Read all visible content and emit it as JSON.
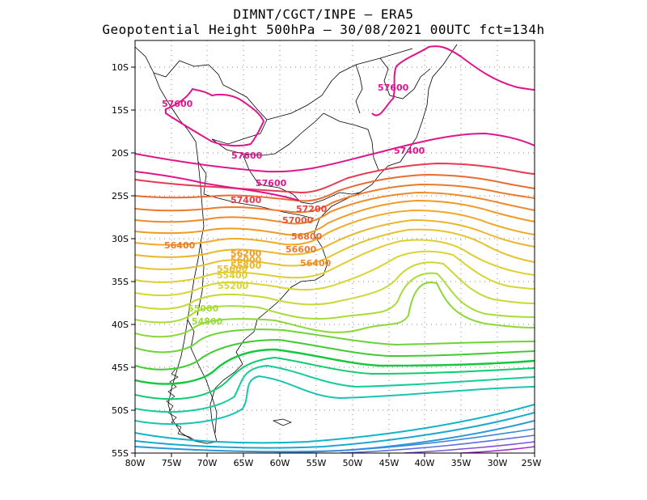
{
  "header": {
    "line1": "DIMNT/CGCT/INPE –  ERA5",
    "line2": "Geopotential Height 500hPa –  30/08/2021 00UTC fct=134h"
  },
  "axes": {
    "lon_ticks": [
      "80W",
      "75W",
      "70W",
      "65W",
      "60W",
      "55W",
      "50W",
      "45W",
      "40W",
      "35W",
      "30W",
      "25W"
    ],
    "lat_ticks": [
      "10S",
      "15S",
      "20S",
      "25S",
      "30S",
      "35S",
      "40S",
      "45S",
      "50S",
      "55S"
    ]
  },
  "contour_labels": [
    {
      "text": "57600",
      "color": "#e0148c"
    },
    {
      "text": "57600",
      "color": "#e0148c"
    },
    {
      "text": "57600",
      "color": "#e0148c"
    },
    {
      "text": "57600",
      "color": "#e0148c"
    },
    {
      "text": "57400",
      "color": "#e0148c"
    },
    {
      "text": "57400",
      "color": "#e83a50"
    },
    {
      "text": "57200",
      "color": "#e8463c"
    },
    {
      "text": "57000",
      "color": "#ea5238"
    },
    {
      "text": "56800",
      "color": "#ec6a30"
    },
    {
      "text": "56600",
      "color": "#ee7a2c"
    },
    {
      "text": "56400",
      "color": "#ee7a2c"
    },
    {
      "text": "56400",
      "color": "#f08a28"
    },
    {
      "text": "56200",
      "color": "#f09a26"
    },
    {
      "text": "56000",
      "color": "#f0aa2a"
    },
    {
      "text": "55800",
      "color": "#ecb62c"
    },
    {
      "text": "55600",
      "color": "#e6c22e"
    },
    {
      "text": "55400",
      "color": "#e0ce30"
    },
    {
      "text": "55200",
      "color": "#d8d432"
    },
    {
      "text": "55000",
      "color": "#a8dc36"
    },
    {
      "text": "54800",
      "color": "#98dc38"
    }
  ],
  "colors": {
    "c57600": "#e0148c",
    "c57400": "#e0148c",
    "frame": "#000000",
    "grid": "#888888",
    "borders": "#000000"
  }
}
